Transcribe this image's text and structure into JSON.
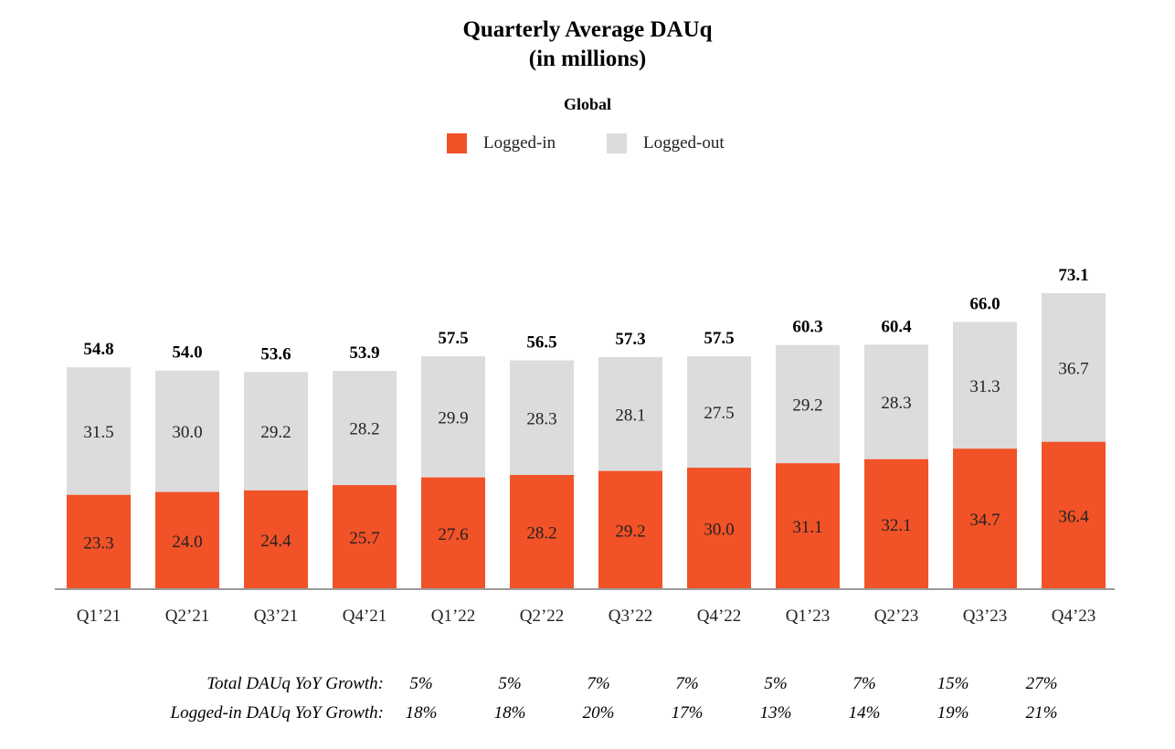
{
  "chart_data": {
    "type": "bar",
    "stacked": true,
    "title": "Quarterly Average DAUq",
    "subtitle_units": "(in millions)",
    "subtitle": "Global",
    "categories": [
      "Q1’21",
      "Q2’21",
      "Q3’21",
      "Q4’21",
      "Q1’22",
      "Q2’22",
      "Q3’22",
      "Q4’22",
      "Q1’23",
      "Q2’23",
      "Q3’23",
      "Q4’23"
    ],
    "series": [
      {
        "name": "Logged-in",
        "color": "#f15227",
        "values": [
          23.3,
          24.0,
          24.4,
          25.7,
          27.6,
          28.2,
          29.2,
          30.0,
          31.1,
          32.1,
          34.7,
          36.4
        ]
      },
      {
        "name": "Logged-out",
        "color": "#dcdcdd",
        "values": [
          31.5,
          30.0,
          29.2,
          28.2,
          29.9,
          28.3,
          28.1,
          27.5,
          29.2,
          28.3,
          31.3,
          36.7
        ]
      }
    ],
    "totals": [
      54.8,
      54.0,
      53.6,
      53.9,
      57.5,
      56.5,
      57.3,
      57.5,
      60.3,
      60.4,
      66.0,
      73.1
    ],
    "ylim": [
      0,
      73.1
    ],
    "legend_position": "top-center"
  },
  "growth": {
    "total_label": "Total DAUq YoY Growth:",
    "loggedin_label": "Logged-in DAUq YoY Growth:",
    "total_values": [
      "5%",
      "5%",
      "7%",
      "7%",
      "5%",
      "7%",
      "15%",
      "27%"
    ],
    "loggedin_values": [
      "18%",
      "18%",
      "20%",
      "17%",
      "13%",
      "14%",
      "19%",
      "21%"
    ]
  }
}
